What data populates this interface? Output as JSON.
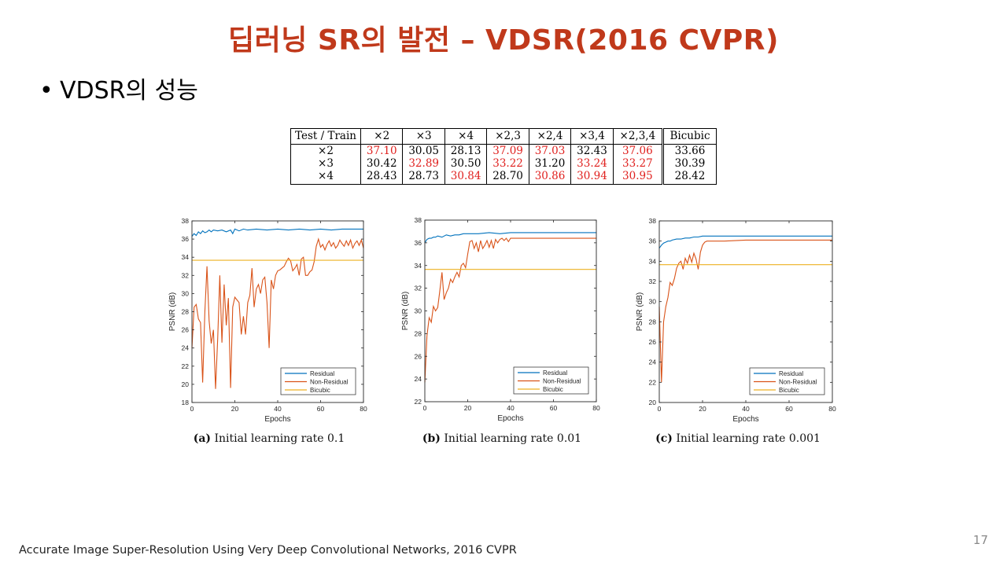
{
  "slide": {
    "title": "딥러닝 SR의 발전 – VDSR(2016 CVPR)",
    "bullet_mark": "•",
    "bullet": "VDSR의 성능",
    "footer": "Accurate Image Super-Resolution Using Very Deep Convolutional Networks, 2016 CVPR",
    "page_number": "17"
  },
  "colors": {
    "title": "#c0391b",
    "best_value": "#e0201e",
    "residual": "#0072bd",
    "non_residual": "#d95319",
    "bicubic": "#edb120"
  },
  "table": {
    "headers": [
      "Test / Train",
      "×2",
      "×3",
      "×4",
      "×2,3",
      "×2,4",
      "×3,4",
      "×2,3,4",
      "Bicubic"
    ],
    "rows": [
      {
        "cells": [
          "×2",
          "37.10",
          "30.05",
          "28.13",
          "37.09",
          "37.03",
          "32.43",
          "37.06",
          "33.66"
        ],
        "best": [
          1,
          4,
          5,
          7
        ]
      },
      {
        "cells": [
          "×3",
          "30.42",
          "32.89",
          "30.50",
          "33.22",
          "31.20",
          "33.24",
          "33.27",
          "30.39"
        ],
        "best": [
          2,
          4,
          6,
          7
        ]
      },
      {
        "cells": [
          "×4",
          "28.43",
          "28.73",
          "30.84",
          "28.70",
          "30.86",
          "30.94",
          "30.95",
          "28.42"
        ],
        "best": [
          3,
          5,
          6,
          7
        ]
      }
    ]
  },
  "chart_data": [
    {
      "type": "line",
      "caption_prefix": "(a)",
      "caption": "Initial learning rate 0.1",
      "xlabel": "Epochs",
      "ylabel": "PSNR (dB)",
      "xlim": [
        0,
        80
      ],
      "ylim": [
        18,
        38
      ],
      "xticks": [
        0,
        20,
        40,
        60,
        80
      ],
      "yticks": [
        18,
        20,
        22,
        24,
        26,
        28,
        30,
        32,
        34,
        36,
        38
      ],
      "legend_position": "bottom-right",
      "series": [
        {
          "name": "Residual",
          "x": [
            0,
            1,
            2,
            3,
            4,
            5,
            6,
            7,
            8,
            9,
            10,
            12,
            14,
            16,
            18,
            19,
            20,
            22,
            24,
            26,
            30,
            35,
            40,
            45,
            50,
            55,
            60,
            65,
            70,
            75,
            80
          ],
          "y": [
            36.3,
            36.6,
            36.4,
            36.8,
            36.6,
            36.9,
            36.7,
            36.8,
            37.0,
            36.8,
            37.0,
            36.9,
            37.0,
            36.8,
            37.0,
            36.6,
            37.1,
            36.9,
            37.1,
            37.0,
            37.1,
            37.0,
            37.1,
            37.0,
            37.1,
            37.0,
            37.1,
            37.0,
            37.1,
            37.1,
            37.1
          ]
        },
        {
          "name": "Non-Residual",
          "x": [
            0,
            1,
            2,
            3,
            4,
            5,
            6,
            7,
            8,
            9,
            10,
            11,
            12,
            13,
            14,
            15,
            16,
            17,
            18,
            19,
            20,
            21,
            22,
            23,
            24,
            25,
            26,
            27,
            28,
            29,
            30,
            31,
            32,
            33,
            34,
            35,
            36,
            37,
            38,
            39,
            40,
            41,
            42,
            43,
            44,
            45,
            46,
            47,
            48,
            49,
            50,
            51,
            52,
            53,
            54,
            55,
            56,
            57,
            58,
            59,
            60,
            61,
            62,
            63,
            64,
            65,
            66,
            67,
            68,
            69,
            70,
            71,
            72,
            73,
            74,
            75,
            76,
            77,
            78,
            79,
            80
          ],
          "y": [
            24.0,
            28.5,
            28.8,
            27.2,
            26.8,
            20.2,
            28.0,
            33.0,
            27.0,
            24.5,
            26.0,
            19.5,
            25.0,
            32.0,
            24.6,
            31.0,
            26.5,
            29.5,
            19.6,
            28.5,
            29.6,
            29.3,
            29.0,
            25.5,
            27.5,
            25.5,
            29.0,
            29.8,
            32.8,
            28.5,
            30.5,
            31.0,
            30.0,
            31.5,
            31.8,
            29.0,
            24.0,
            31.5,
            30.5,
            32.0,
            32.5,
            32.6,
            32.8,
            33.0,
            33.5,
            33.9,
            33.6,
            32.5,
            32.8,
            33.2,
            32.0,
            33.8,
            34.0,
            32.0,
            32.0,
            32.4,
            32.6,
            33.5,
            35.2,
            36.0,
            35.1,
            35.4,
            34.8,
            35.4,
            35.8,
            35.2,
            35.6,
            35.0,
            35.3,
            35.9,
            35.5,
            35.2,
            35.8,
            35.3,
            35.9,
            35.0,
            35.5,
            35.8,
            35.3,
            35.9,
            35.0
          ]
        },
        {
          "name": "Bicubic",
          "x": [
            0,
            80
          ],
          "y": [
            33.66,
            33.66
          ]
        }
      ]
    },
    {
      "type": "line",
      "caption_prefix": "(b)",
      "caption": "Initial learning rate 0.01",
      "xlabel": "Epochs",
      "ylabel": "PSNR (dB)",
      "xlim": [
        0,
        80
      ],
      "ylim": [
        22,
        38
      ],
      "xticks": [
        0,
        20,
        40,
        60,
        80
      ],
      "yticks": [
        22,
        24,
        26,
        28,
        30,
        32,
        34,
        36,
        38
      ],
      "legend_position": "bottom-right",
      "series": [
        {
          "name": "Residual",
          "x": [
            0,
            1,
            2,
            3,
            4,
            5,
            6,
            8,
            10,
            12,
            14,
            16,
            18,
            20,
            25,
            30,
            35,
            40,
            50,
            60,
            70,
            80
          ],
          "y": [
            36.0,
            36.3,
            36.4,
            36.4,
            36.5,
            36.5,
            36.6,
            36.5,
            36.7,
            36.6,
            36.7,
            36.7,
            36.8,
            36.8,
            36.8,
            36.9,
            36.8,
            36.9,
            36.9,
            36.9,
            36.9,
            36.9
          ]
        },
        {
          "name": "Non-Residual",
          "x": [
            0,
            1,
            2,
            3,
            4,
            5,
            6,
            7,
            8,
            9,
            10,
            11,
            12,
            13,
            14,
            15,
            16,
            17,
            18,
            19,
            20,
            21,
            22,
            23,
            24,
            25,
            26,
            27,
            28,
            29,
            30,
            31,
            32,
            33,
            34,
            35,
            36,
            37,
            38,
            39,
            40,
            41,
            42,
            45,
            50,
            60,
            70,
            80
          ],
          "y": [
            23.7,
            27.8,
            29.4,
            29.0,
            30.4,
            30.0,
            30.3,
            31.8,
            33.4,
            31.0,
            31.6,
            32.0,
            32.8,
            32.5,
            33.0,
            33.4,
            33.0,
            34.0,
            34.2,
            33.8,
            35.0,
            36.1,
            36.2,
            35.5,
            36.0,
            35.2,
            36.2,
            35.5,
            35.8,
            36.2,
            35.6,
            36.2,
            35.5,
            36.3,
            36.0,
            36.3,
            36.4,
            36.2,
            36.4,
            36.1,
            36.4,
            36.4,
            36.4,
            36.4,
            36.4,
            36.4,
            36.4,
            36.4
          ]
        },
        {
          "name": "Bicubic",
          "x": [
            0,
            80
          ],
          "y": [
            33.66,
            33.66
          ]
        }
      ]
    },
    {
      "type": "line",
      "caption_prefix": "(c)",
      "caption": "Initial learning rate 0.001",
      "xlabel": "Epochs",
      "ylabel": "PSNR (dB)",
      "xlim": [
        0,
        80
      ],
      "ylim": [
        20,
        38
      ],
      "xticks": [
        0,
        20,
        40,
        60,
        80
      ],
      "yticks": [
        20,
        22,
        24,
        26,
        28,
        30,
        32,
        34,
        36,
        38
      ],
      "legend_position": "bottom-right",
      "series": [
        {
          "name": "Residual",
          "x": [
            0,
            1,
            2,
            3,
            4,
            5,
            6,
            8,
            10,
            12,
            14,
            16,
            18,
            20,
            25,
            30,
            40,
            50,
            60,
            70,
            80
          ],
          "y": [
            35.3,
            35.6,
            35.8,
            35.9,
            36.0,
            36.0,
            36.1,
            36.2,
            36.2,
            36.3,
            36.3,
            36.4,
            36.4,
            36.5,
            36.5,
            36.5,
            36.5,
            36.5,
            36.5,
            36.5,
            36.5
          ]
        },
        {
          "name": "Non-Residual",
          "x": [
            0,
            1,
            2,
            3,
            4,
            5,
            6,
            7,
            8,
            9,
            10,
            11,
            12,
            13,
            14,
            15,
            16,
            17,
            18,
            19,
            20,
            21,
            22,
            25,
            30,
            40,
            50,
            60,
            70,
            80
          ],
          "y": [
            29.5,
            22.0,
            28.0,
            29.5,
            30.4,
            31.9,
            31.6,
            32.3,
            33.3,
            33.8,
            34.0,
            33.2,
            34.3,
            33.8,
            34.6,
            33.9,
            34.8,
            34.2,
            33.2,
            34.9,
            35.6,
            35.9,
            36.0,
            36.0,
            36.0,
            36.1,
            36.1,
            36.1,
            36.1,
            36.1
          ]
        },
        {
          "name": "Bicubic",
          "x": [
            0,
            80
          ],
          "y": [
            33.66,
            33.66
          ]
        }
      ]
    }
  ]
}
